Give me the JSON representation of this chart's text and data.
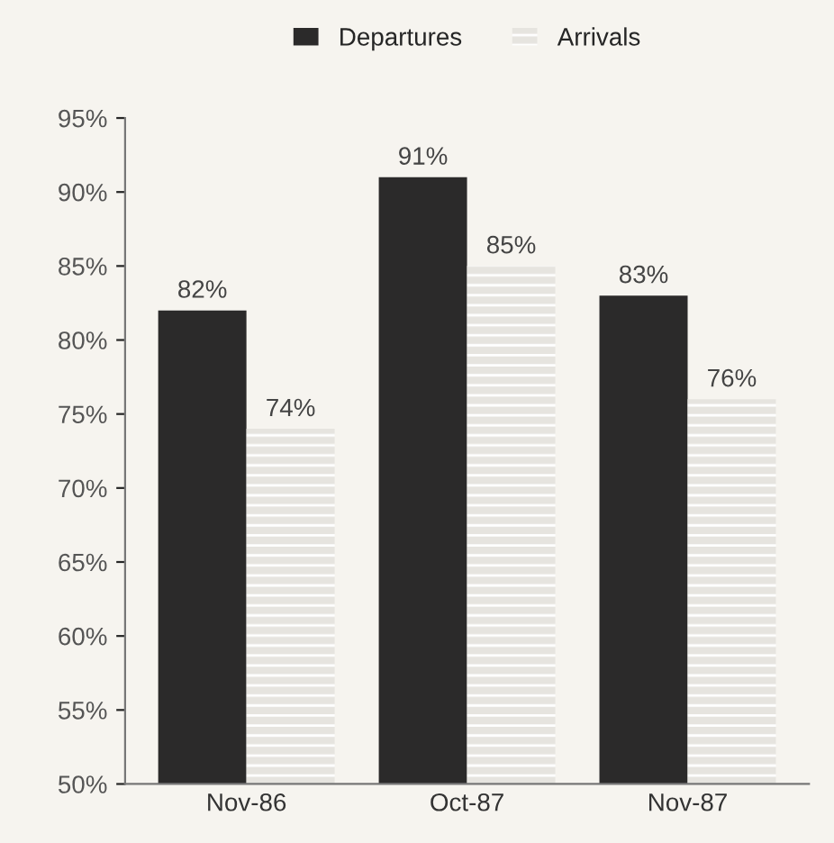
{
  "chart_data": {
    "type": "bar",
    "categories": [
      "Nov-86",
      "Oct-87",
      "Nov-87"
    ],
    "series": [
      {
        "name": "Departures",
        "color": "#2b2a2a",
        "values": [
          82,
          91,
          83
        ],
        "value_labels": [
          "82%",
          "91%",
          "83%"
        ]
      },
      {
        "name": "Arrivals",
        "color": "#e6e4df",
        "values": [
          74,
          85,
          76
        ],
        "value_labels": [
          "74%",
          "85%",
          "76%"
        ]
      }
    ],
    "ylim": [
      50,
      95
    ],
    "yticks": [
      {
        "value": 50,
        "label": "50%"
      },
      {
        "value": 55,
        "label": "55%"
      },
      {
        "value": 60,
        "label": "60%"
      },
      {
        "value": 65,
        "label": "65%"
      },
      {
        "value": 70,
        "label": "70%"
      },
      {
        "value": 75,
        "label": "75%"
      },
      {
        "value": 80,
        "label": "80%"
      },
      {
        "value": 85,
        "label": "85%"
      },
      {
        "value": 90,
        "label": "90%"
      },
      {
        "value": 95,
        "label": "95%"
      }
    ],
    "legend": "top",
    "grid": false
  }
}
